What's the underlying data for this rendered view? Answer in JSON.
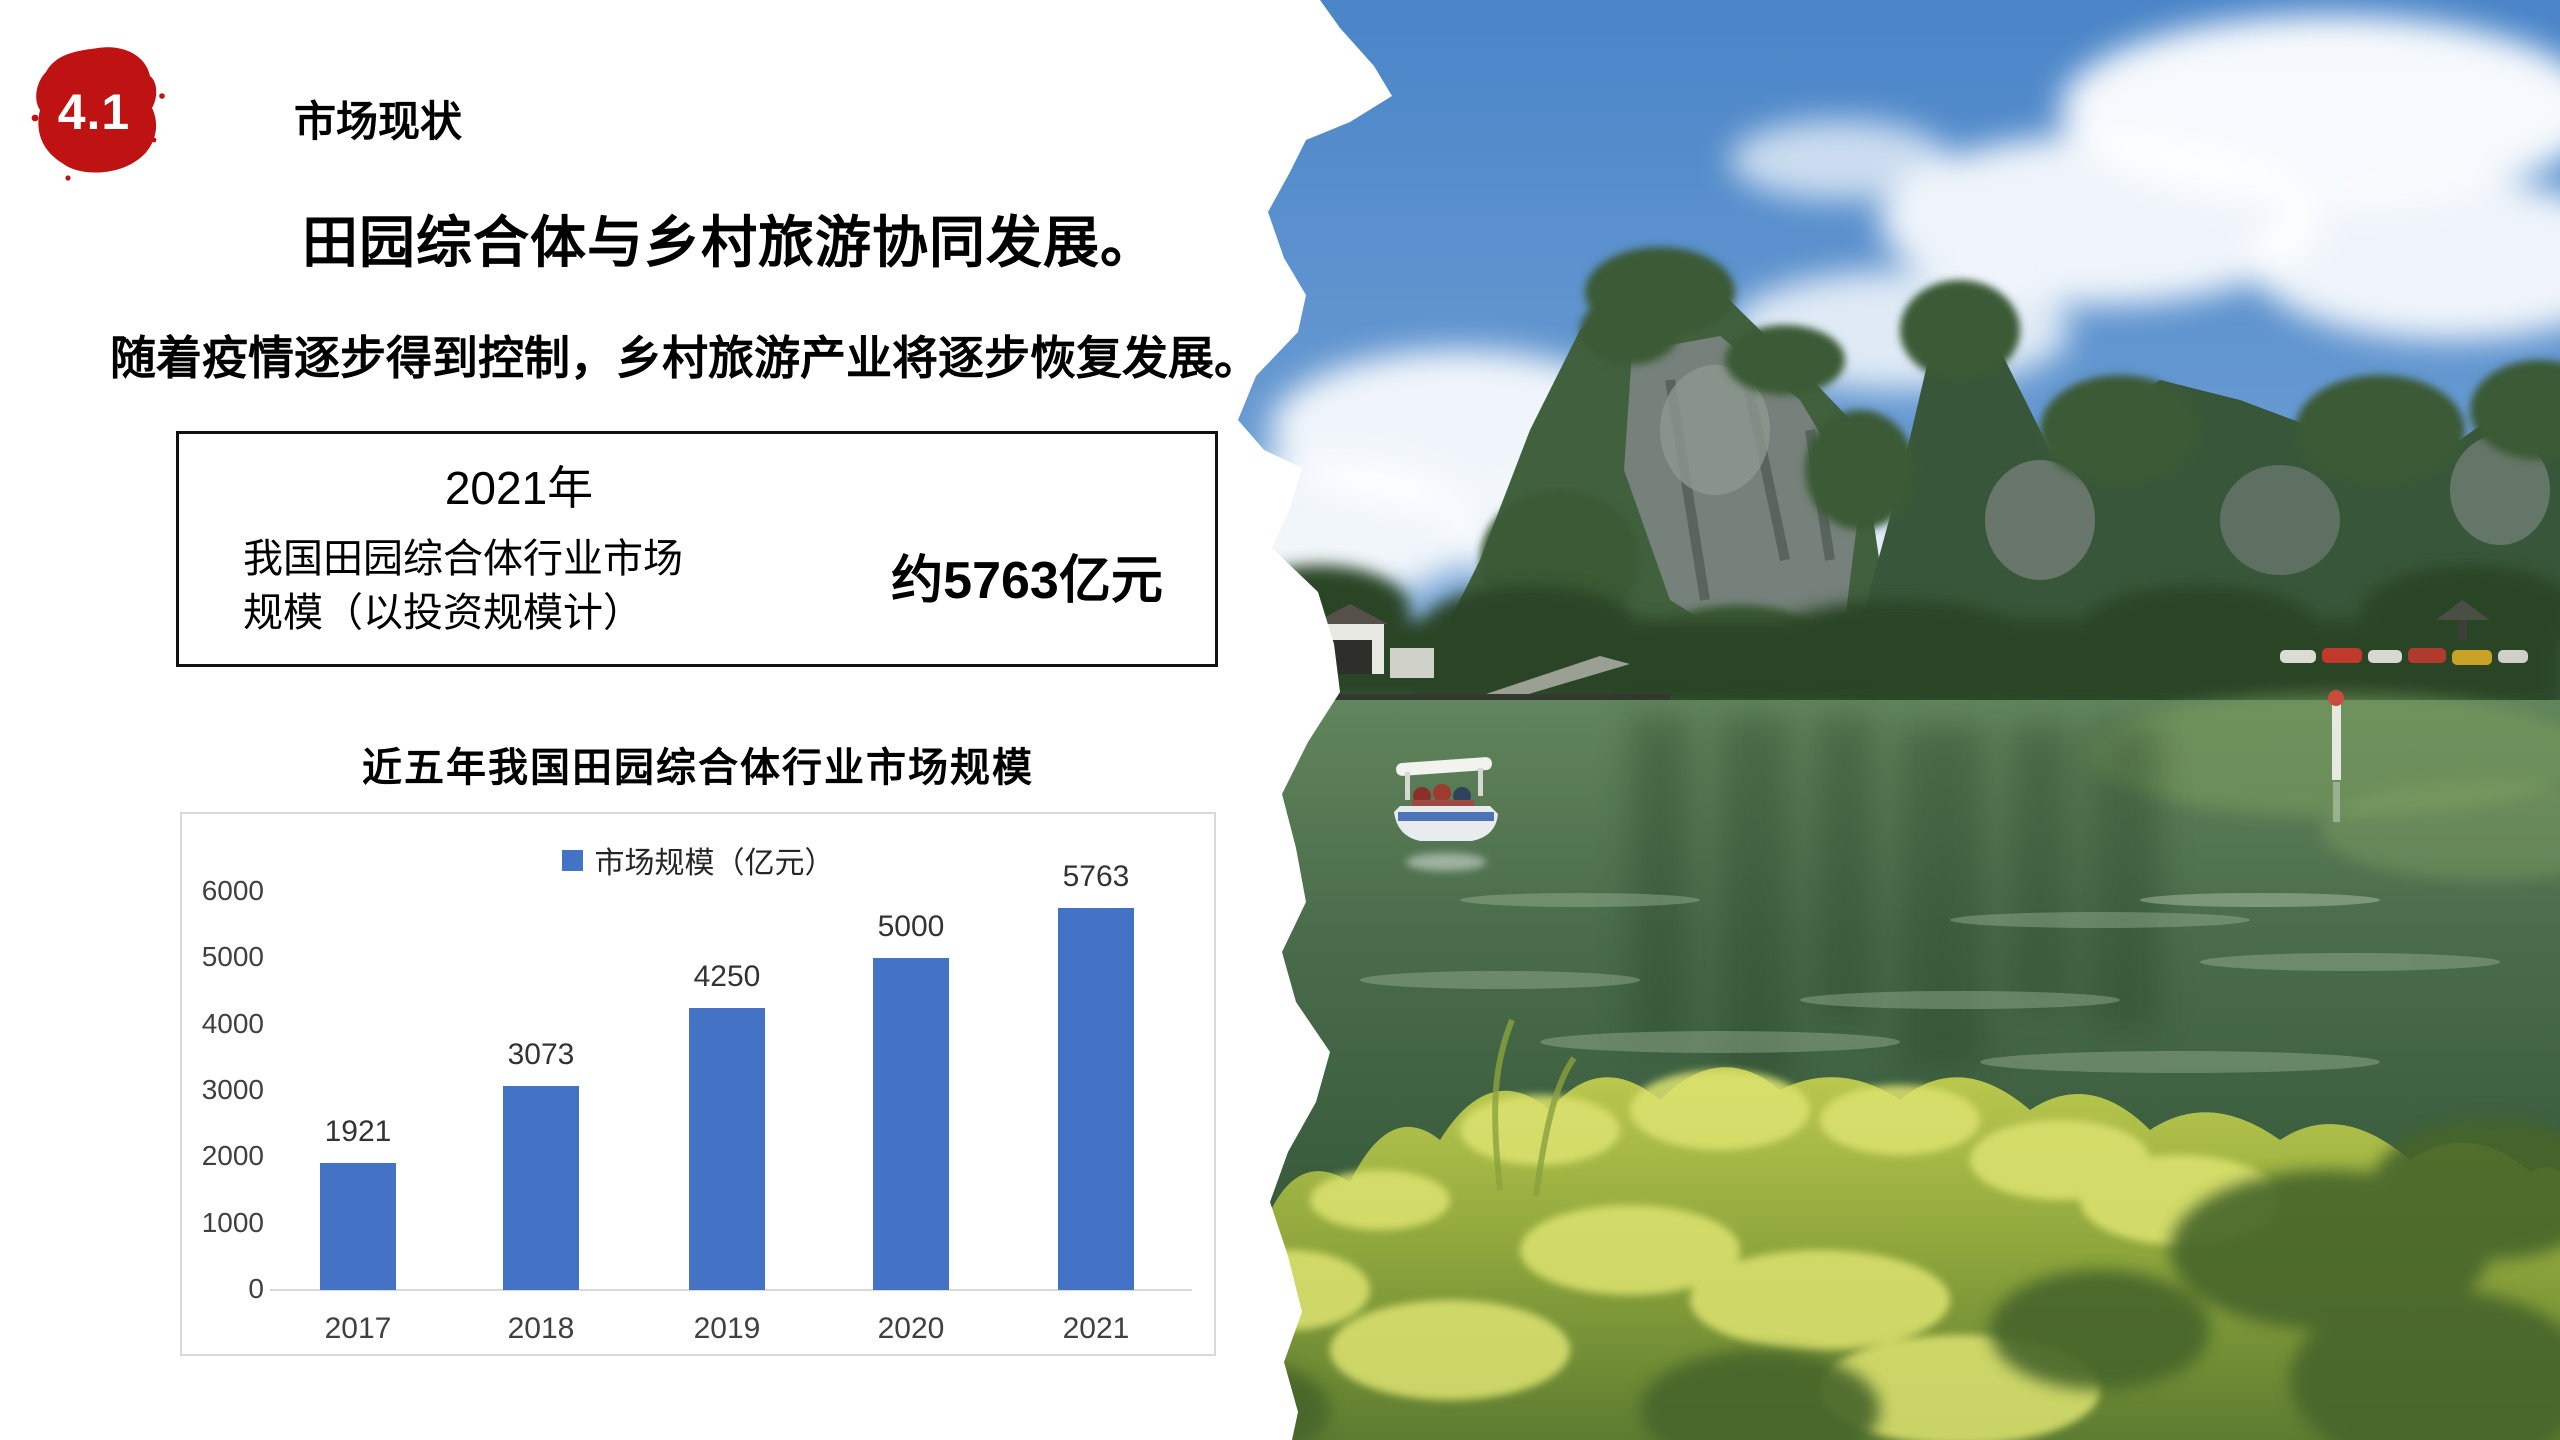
{
  "slide": {
    "badge": "4.1",
    "section_title": "市场现状",
    "heading": "田园综合体与乡村旅游协同发展。",
    "subtitle": "随着疫情逐步得到控制，乡村旅游产业将逐步恢复发展。",
    "highlight_box": {
      "year": "2021年",
      "line1": "我国田园综合体行业市场",
      "line2": "规模（以投资规模计）",
      "value": "约5763亿元"
    },
    "chart_title": "近五年我国田园综合体行业市场规模"
  },
  "chart_data": {
    "type": "bar",
    "title": "近五年我国田园综合体行业市场规模",
    "legend": [
      "市场规模（亿元）"
    ],
    "legend_position": "top-center",
    "categories": [
      "2017",
      "2018",
      "2019",
      "2020",
      "2021"
    ],
    "values": [
      1921,
      3073,
      4250,
      5000,
      5763
    ],
    "ylim": [
      0,
      6000
    ],
    "yticks": [
      0,
      1000,
      2000,
      3000,
      4000,
      5000,
      6000
    ],
    "grid": false,
    "bar_color": "#4472c4"
  },
  "colors": {
    "badge_red": "#bf1212",
    "bar_blue": "#4472c4",
    "axis_gray": "#d9d9d9",
    "text_black": "#000000"
  }
}
